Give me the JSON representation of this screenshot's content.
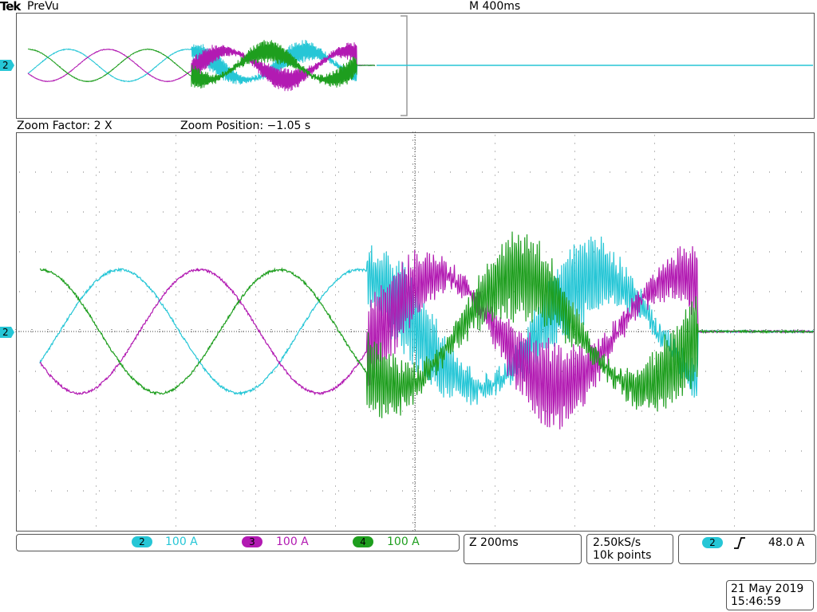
{
  "header": {
    "brand": "Tek",
    "mode": "PreVu",
    "timebase": "M 400ms"
  },
  "zoom": {
    "factor_text": "Zoom Factor: 2 X",
    "position_text": "Zoom Position: −1.05 s"
  },
  "markers": {
    "channel_marker": "2"
  },
  "channels": [
    {
      "id": "2",
      "scale": "100 A",
      "color": "#26c6d6"
    },
    {
      "id": "3",
      "scale": "100 A",
      "color": "#b21ab2"
    },
    {
      "id": "4",
      "scale": "100 A",
      "color": "#1e9e1e"
    }
  ],
  "footer": {
    "zoom_time": "Z 200ms",
    "sample_rate": "2.50kS/s",
    "record_length": "10k points",
    "trigger_channel": "2",
    "trigger_level": "48.0 A",
    "date": "21 May 2019",
    "time": "15:46:59"
  },
  "chart_data": {
    "type": "line",
    "title": "",
    "xlabel": "",
    "ylabel": "",
    "x_divisions": 10,
    "y_divisions": 10,
    "x_units": "div",
    "y_units": "div",
    "xlim": [
      0,
      10
    ],
    "ylim": [
      -5,
      5
    ],
    "grid": "dotted",
    "phase_frequency_cycles_per_div": 0.3333,
    "sine_amplitude_div": 1.55,
    "unstable_region_start_div": 4.4,
    "transient_end_div": 8.55,
    "series": [
      {
        "name": "2",
        "color": "#26c6d6",
        "amplitude_div": 1.55,
        "phase_deg": -120
      },
      {
        "name": "3",
        "color": "#b21ab2",
        "amplitude_div": 1.55,
        "phase_deg": 120
      },
      {
        "name": "4",
        "color": "#1e9e1e",
        "amplitude_div": 1.55,
        "phase_deg": 0
      }
    ]
  }
}
